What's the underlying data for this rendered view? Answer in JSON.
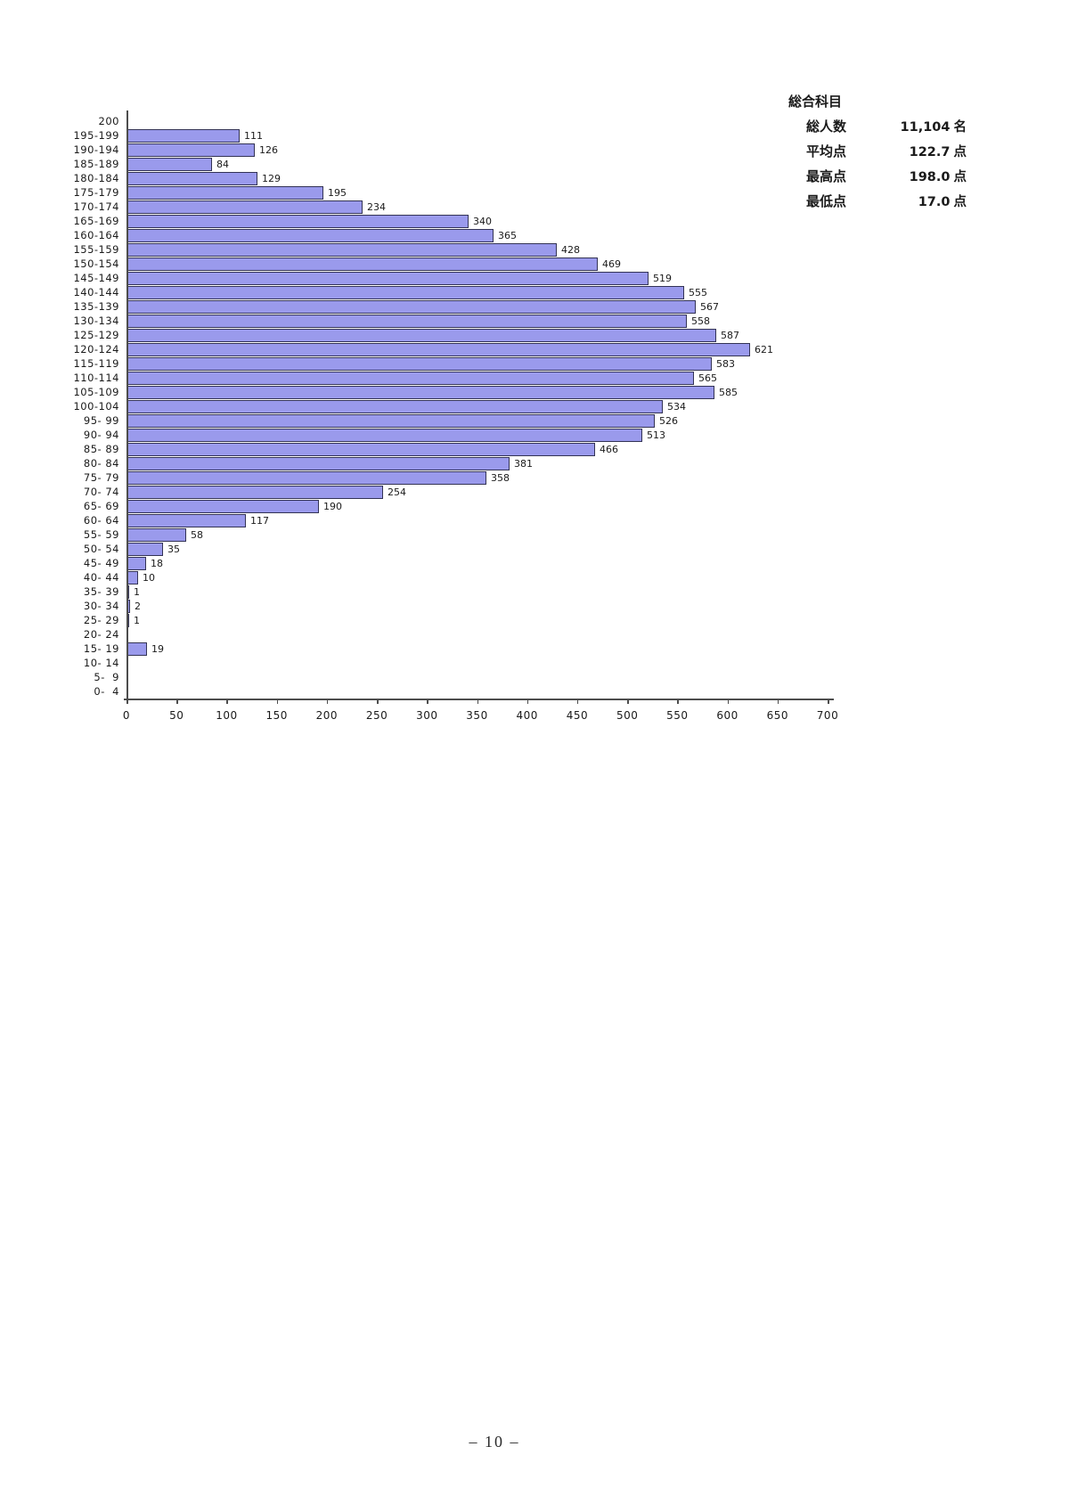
{
  "page": {
    "footer": "–  10  –"
  },
  "stats": {
    "title": "総合科目",
    "rows": [
      {
        "label": "総人数",
        "value": "11,104",
        "unit": "名"
      },
      {
        "label": "平均点",
        "value": "122.7",
        "unit": "点"
      },
      {
        "label": "最高点",
        "value": "198.0",
        "unit": "点"
      },
      {
        "label": "最低点",
        "value": "17.0",
        "unit": "点"
      }
    ]
  },
  "chart_data": {
    "type": "bar",
    "orientation": "horizontal",
    "title": "",
    "xlabel": "",
    "ylabel": "",
    "grid": false,
    "legend": "none",
    "xlim": [
      0,
      700
    ],
    "x_ticks": [
      0,
      50,
      100,
      150,
      200,
      250,
      300,
      350,
      400,
      450,
      500,
      550,
      600,
      650,
      700
    ],
    "bar_fill": "#9a9aec",
    "bar_border": "#333355",
    "axis_color": "#4d4d4d",
    "categories": [
      "200",
      "195-199",
      "190-194",
      "185-189",
      "180-184",
      "175-179",
      "170-174",
      "165-169",
      "160-164",
      "155-159",
      "150-154",
      "145-149",
      "140-144",
      "135-139",
      "130-134",
      "125-129",
      "120-124",
      "115-119",
      "110-114",
      "105-109",
      "100-104",
      "95- 99",
      "90- 94",
      "85- 89",
      "80- 84",
      "75- 79",
      "70- 74",
      "65- 69",
      "60- 64",
      "55- 59",
      "50- 54",
      "45- 49",
      "40- 44",
      "35- 39",
      "30- 34",
      "25- 29",
      "20- 24",
      "15- 19",
      "10- 14",
      "5-  9",
      "0-  4"
    ],
    "values": [
      0,
      111,
      126,
      84,
      129,
      195,
      234,
      340,
      365,
      428,
      469,
      519,
      555,
      567,
      558,
      587,
      621,
      583,
      565,
      585,
      534,
      526,
      513,
      466,
      381,
      358,
      254,
      190,
      117,
      58,
      35,
      18,
      10,
      1,
      2,
      1,
      0,
      19,
      0,
      0,
      0
    ]
  }
}
